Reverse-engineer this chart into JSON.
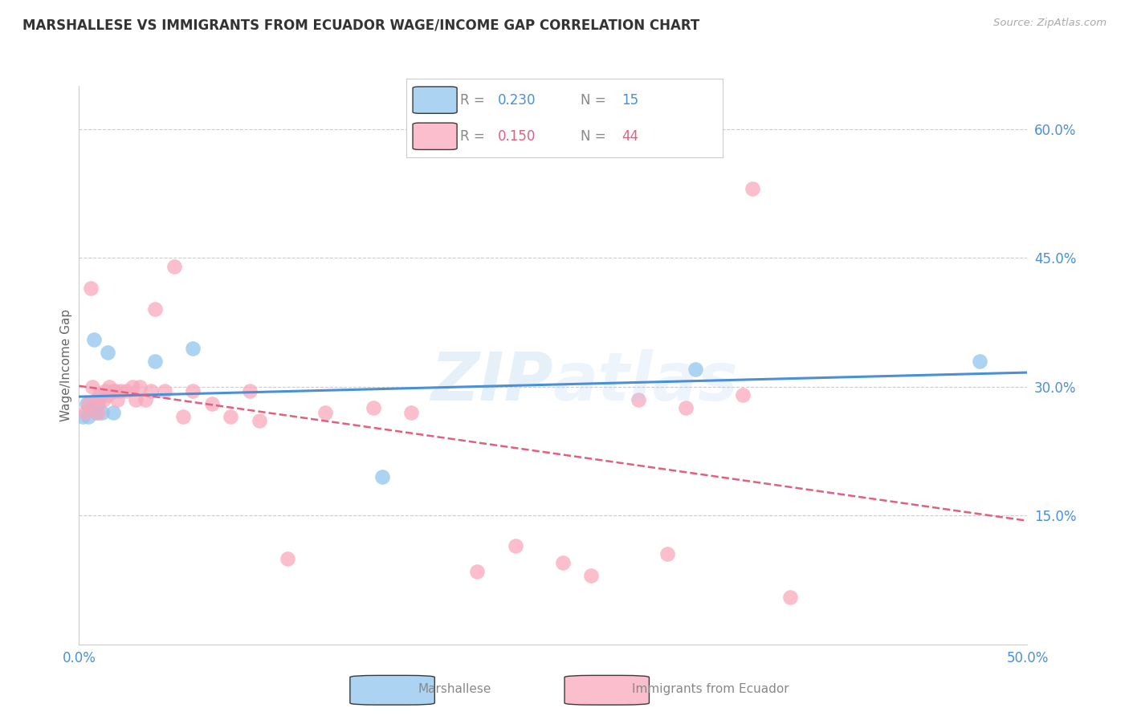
{
  "title": "MARSHALLESE VS IMMIGRANTS FROM ECUADOR WAGE/INCOME GAP CORRELATION CHART",
  "source": "Source: ZipAtlas.com",
  "ylabel": "Wage/Income Gap",
  "xlim": [
    0.0,
    0.5
  ],
  "ylim": [
    0.0,
    0.65
  ],
  "watermark": "ZIPAtlas",
  "marshallese_R": 0.23,
  "marshallese_N": 15,
  "ecuador_R": 0.15,
  "ecuador_N": 44,
  "marshallese_color": "#92C5F0",
  "ecuador_color": "#F9A8BC",
  "marshallese_line_color": "#4A90D9",
  "ecuador_line_color": "#E06080",
  "marshallese_x": [
    0.002,
    0.004,
    0.005,
    0.007,
    0.008,
    0.009,
    0.01,
    0.012,
    0.015,
    0.018,
    0.04,
    0.06,
    0.16,
    0.325,
    0.475
  ],
  "marshallese_y": [
    0.265,
    0.28,
    0.265,
    0.275,
    0.355,
    0.27,
    0.28,
    0.27,
    0.34,
    0.27,
    0.33,
    0.345,
    0.195,
    0.32,
    0.33
  ],
  "ecuador_x": [
    0.003,
    0.005,
    0.006,
    0.007,
    0.009,
    0.01,
    0.011,
    0.013,
    0.014,
    0.015,
    0.016,
    0.018,
    0.019,
    0.02,
    0.022,
    0.025,
    0.028,
    0.03,
    0.032,
    0.035,
    0.038,
    0.04,
    0.045,
    0.05,
    0.055,
    0.06,
    0.07,
    0.08,
    0.09,
    0.095,
    0.11,
    0.13,
    0.155,
    0.175,
    0.21,
    0.23,
    0.255,
    0.27,
    0.295,
    0.31,
    0.32,
    0.35,
    0.355,
    0.375
  ],
  "ecuador_y": [
    0.27,
    0.28,
    0.415,
    0.3,
    0.285,
    0.27,
    0.29,
    0.285,
    0.295,
    0.29,
    0.3,
    0.295,
    0.295,
    0.285,
    0.295,
    0.295,
    0.3,
    0.285,
    0.3,
    0.285,
    0.295,
    0.39,
    0.295,
    0.44,
    0.265,
    0.295,
    0.28,
    0.265,
    0.295,
    0.26,
    0.1,
    0.27,
    0.275,
    0.27,
    0.085,
    0.115,
    0.095,
    0.08,
    0.285,
    0.105,
    0.275,
    0.29,
    0.53,
    0.055
  ]
}
